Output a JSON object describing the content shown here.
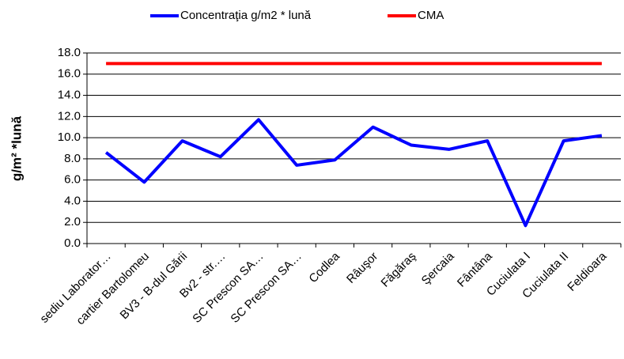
{
  "chart_data": {
    "type": "line",
    "y_label": "g/m² *lună",
    "categories": [
      "sediu Laborator…",
      "cartier Bartolomeu",
      "BV3 - B-dul Gării",
      "Bv2 - str.…",
      "SC Prescon SA…",
      "SC Prescon SA…",
      "Codlea",
      "Râuşor",
      "Făgăraş",
      "Şercaia",
      "Fântâna",
      "Cuciulata I",
      "Cuciulata II",
      "Feldioara"
    ],
    "series": [
      {
        "name": "Concentraţia g/m2 * lună",
        "color": "#0000ff",
        "values": [
          8.6,
          5.8,
          9.7,
          8.2,
          11.7,
          7.4,
          7.9,
          11.0,
          9.3,
          8.9,
          9.7,
          1.7,
          9.7,
          10.2
        ]
      },
      {
        "name": "CMA",
        "color": "#ff0000",
        "values": [
          17,
          17,
          17,
          17,
          17,
          17,
          17,
          17,
          17,
          17,
          17,
          17,
          17,
          17
        ]
      }
    ],
    "ylim": [
      0,
      18
    ],
    "yticks": [
      {
        "value": 0,
        "label": "0.0"
      },
      {
        "value": 2,
        "label": "2.0"
      },
      {
        "value": 4,
        "label": "4.0"
      },
      {
        "value": 6,
        "label": "6.0"
      },
      {
        "value": 8,
        "label": "8.0"
      },
      {
        "value": 10,
        "label": "10.0"
      },
      {
        "value": 12,
        "label": "12.0"
      },
      {
        "value": 14,
        "label": "14.0"
      },
      {
        "value": 16,
        "label": "16.0"
      },
      {
        "value": 18,
        "label": "18.0"
      }
    ],
    "grid": true,
    "legend": "top"
  }
}
